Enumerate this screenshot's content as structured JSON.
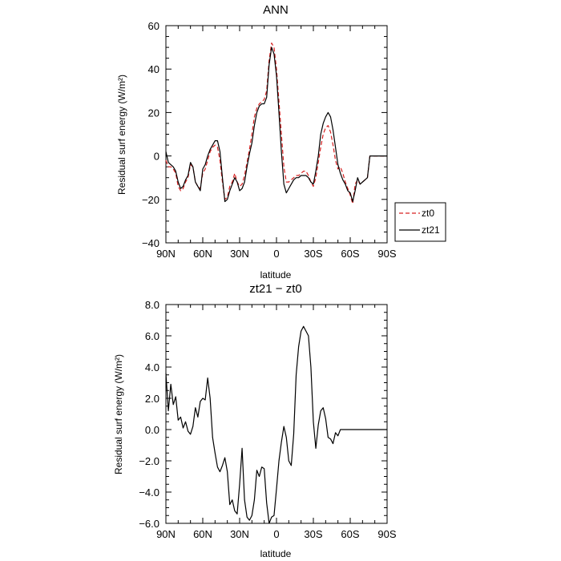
{
  "chart_data": [
    {
      "type": "line",
      "title": "ANN",
      "xlabel": "latitude",
      "ylabel": "Residual surf energy (W/m²)",
      "xlim": [
        90,
        -90
      ],
      "ylim": [
        -40,
        60
      ],
      "xticks": [
        90,
        60,
        30,
        0,
        -30,
        -60,
        -90
      ],
      "xtick_labels": [
        "90N",
        "60N",
        "30N",
        "0",
        "30S",
        "60S",
        "90S"
      ],
      "yticks": [
        -40,
        -20,
        0,
        20,
        40,
        60
      ],
      "ytick_labels": [
        "−40",
        "−20",
        "0",
        "20",
        "40",
        "60"
      ],
      "grid": false,
      "legend": "right",
      "series": [
        {
          "name": "zt0",
          "color": "#d62020",
          "dash": "dashed",
          "x": [
            90,
            88,
            86,
            84,
            82,
            80,
            78,
            76,
            74,
            72,
            70,
            68,
            66,
            64,
            62,
            60,
            58,
            56,
            54,
            52,
            50,
            48,
            46,
            44,
            42,
            40,
            38,
            36,
            34,
            32,
            30,
            28,
            26,
            24,
            22,
            20,
            18,
            16,
            14,
            12,
            10,
            8,
            6,
            4,
            2,
            0,
            -2,
            -4,
            -6,
            -8,
            -10,
            -12,
            -14,
            -16,
            -18,
            -20,
            -22,
            -24,
            -26,
            -28,
            -30,
            -32,
            -34,
            -36,
            -38,
            -40,
            -42,
            -44,
            -46,
            -48,
            -50,
            -52,
            -54,
            -56,
            -58,
            -60,
            -62,
            -64,
            -66,
            -68,
            -70,
            -72,
            -74,
            -76,
            -78,
            -80,
            -82,
            -84,
            -86,
            -88,
            -90
          ],
          "y": [
            -2,
            -5,
            -5,
            -6,
            -8,
            -14,
            -16,
            -15,
            -12,
            -10,
            -4,
            -5,
            -12,
            -14,
            -15,
            -8,
            -6,
            -2,
            2,
            4,
            5,
            4,
            -2,
            -12,
            -20,
            -19,
            -14,
            -12,
            -8,
            -12,
            -14,
            -13,
            -9,
            -3,
            3,
            10,
            18,
            22,
            24,
            25,
            26,
            30,
            44,
            52,
            50,
            40,
            25,
            10,
            -5,
            -12,
            -12,
            -11,
            -10,
            -9,
            -9,
            -8,
            -7,
            -7,
            -9,
            -12,
            -14,
            -10,
            -3,
            4,
            10,
            13,
            14,
            11,
            5,
            -2,
            -6,
            -5,
            -8,
            -12,
            -15,
            -18,
            -22,
            -13,
            -11,
            -13,
            -12,
            -11,
            -10,
            0,
            0,
            0,
            0,
            0,
            0,
            0,
            0
          ]
        },
        {
          "name": "zt21",
          "color": "#000000",
          "dash": "solid",
          "x": [
            90,
            88,
            86,
            84,
            82,
            80,
            78,
            76,
            74,
            72,
            70,
            68,
            66,
            64,
            62,
            60,
            58,
            56,
            54,
            52,
            50,
            48,
            46,
            44,
            42,
            40,
            38,
            36,
            34,
            32,
            30,
            28,
            26,
            24,
            22,
            20,
            18,
            16,
            14,
            12,
            10,
            8,
            6,
            4,
            2,
            0,
            -2,
            -4,
            -6,
            -8,
            -10,
            -12,
            -14,
            -16,
            -18,
            -20,
            -22,
            -24,
            -26,
            -28,
            -30,
            -32,
            -34,
            -36,
            -38,
            -40,
            -42,
            -44,
            -46,
            -48,
            -50,
            -52,
            -54,
            -56,
            -58,
            -60,
            -62,
            -64,
            -66,
            -68,
            -70,
            -72,
            -74,
            -76,
            -78,
            -80,
            -82,
            -84,
            -86,
            -88,
            -90
          ],
          "y": [
            2,
            -3,
            -4,
            -5,
            -7,
            -12,
            -15,
            -14,
            -11,
            -9,
            -3,
            -5,
            -12,
            -14,
            -16,
            -6,
            -4,
            0,
            3,
            5,
            7,
            7,
            2,
            -10,
            -21,
            -20,
            -16,
            -13,
            -10,
            -12,
            -16,
            -15,
            -12,
            -5,
            1,
            6,
            14,
            20,
            23,
            24,
            24,
            27,
            42,
            50,
            47,
            37,
            20,
            2,
            -13,
            -17,
            -15,
            -13,
            -11,
            -10,
            -10,
            -9,
            -9,
            -9,
            -10,
            -12,
            -13,
            -7,
            0,
            10,
            15,
            18,
            20,
            18,
            12,
            4,
            -4,
            -8,
            -11,
            -13,
            -16,
            -17,
            -21,
            -16,
            -10,
            -13,
            -12,
            -11,
            -10,
            0,
            0,
            0,
            0,
            0,
            0,
            0,
            0
          ]
        }
      ]
    },
    {
      "type": "line",
      "title": "zt21 − zt0",
      "xlabel": "latitude",
      "ylabel": "Residual surf energy (W/m²)",
      "xlim": [
        90,
        -90
      ],
      "ylim": [
        -6,
        8
      ],
      "xticks": [
        90,
        60,
        30,
        0,
        -30,
        -60,
        -90
      ],
      "xtick_labels": [
        "90N",
        "60N",
        "30N",
        "0",
        "30S",
        "60S",
        "90S"
      ],
      "yticks": [
        -6,
        -4,
        -2,
        0,
        2,
        4,
        6,
        8
      ],
      "ytick_labels": [
        "−6.0",
        "−4.0",
        "−2.0",
        "0.0",
        "2.0",
        "4.0",
        "6.0",
        "8.0"
      ],
      "grid": false,
      "series": [
        {
          "color": "#000000",
          "dash": "solid",
          "x": [
            90,
            88,
            86,
            84,
            82,
            80,
            78,
            76,
            74,
            72,
            70,
            68,
            66,
            64,
            62,
            60,
            58,
            56,
            54,
            52,
            50,
            48,
            46,
            44,
            42,
            40,
            38,
            36,
            34,
            32,
            30,
            28,
            26,
            24,
            22,
            20,
            18,
            16,
            14,
            12,
            10,
            8,
            6,
            4,
            2,
            0,
            -2,
            -4,
            -6,
            -8,
            -10,
            -12,
            -14,
            -16,
            -18,
            -20,
            -22,
            -24,
            -26,
            -28,
            -30,
            -32,
            -34,
            -36,
            -38,
            -40,
            -42,
            -44,
            -46,
            -48,
            -50,
            -52,
            -54,
            -56,
            -58,
            -60,
            -62,
            -64,
            -66,
            -68,
            -70,
            -72,
            -74,
            -76,
            -78,
            -80,
            -82,
            -84,
            -86,
            -88,
            -90
          ],
          "y": [
            3.6,
            1.2,
            2.9,
            1.6,
            2.1,
            0.6,
            0.8,
            0.1,
            0.5,
            -0.1,
            -0.3,
            0.2,
            1.4,
            0.8,
            1.8,
            2.0,
            1.9,
            3.3,
            2.0,
            -0.5,
            -1.5,
            -2.4,
            -2.7,
            -2.3,
            -1.8,
            -2.7,
            -4.8,
            -4.5,
            -5.2,
            -5.4,
            -3.5,
            -1.2,
            -4.5,
            -5.6,
            -5.8,
            -5.5,
            -4.5,
            -2.6,
            -3.0,
            -2.4,
            -2.5,
            -4.7,
            -6.0,
            -5.6,
            -5.5,
            -3.8,
            -2.0,
            -0.8,
            0.2,
            -0.5,
            -2.0,
            -2.3,
            -0.3,
            3.5,
            5.3,
            6.3,
            6.6,
            6.3,
            6.0,
            4.0,
            0.5,
            -1.2,
            0.3,
            1.2,
            1.4,
            0.7,
            -0.5,
            -0.6,
            -0.9,
            -0.2,
            -0.4,
            0.0,
            0.0,
            0.0,
            0.0,
            0.0,
            0.0,
            0.0,
            0.0,
            0.0,
            0.0,
            0.0,
            0.0,
            0.0,
            0.0,
            0.0,
            0.0,
            0.0,
            0.0,
            0.0,
            0.0
          ]
        }
      ]
    }
  ]
}
